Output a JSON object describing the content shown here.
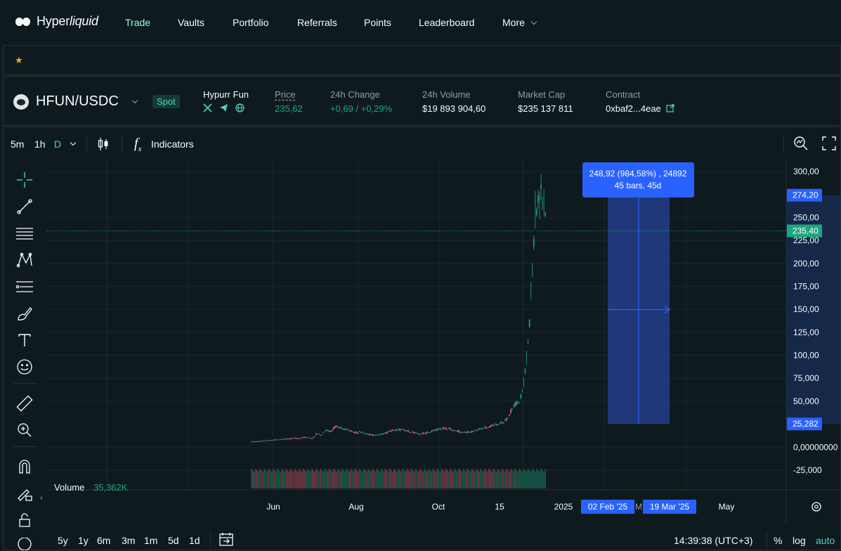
{
  "app": {
    "brand_prefix": "Hyper",
    "brand_suffix": "liquid"
  },
  "nav": {
    "items": [
      "Trade",
      "Vaults",
      "Portfolio",
      "Referrals",
      "Points",
      "Leaderboard",
      "More"
    ],
    "active": "Trade"
  },
  "favorites": {
    "star": "★"
  },
  "ticker": {
    "pair": "HFUN/USDC",
    "market_type": "Spot",
    "token_name": "Hypurr Fun",
    "price_label": "Price",
    "price": "235,62",
    "change_label": "24h Change",
    "change": "+0,69 / +0,29%",
    "volume_label": "24h Volume",
    "volume": "$19 893 904,60",
    "mcap_label": "Market Cap",
    "mcap": "$235 137 811",
    "contract_label": "Contract",
    "contract": "0xbaf2...4eae"
  },
  "toolbar": {
    "intervals": [
      "5m",
      "1h",
      "D"
    ],
    "active_interval": "D",
    "fx": "f",
    "fx_sub": "x",
    "indicators": "Indicators"
  },
  "chart_data": {
    "type": "candlestick",
    "y_ticks": [
      "300,00",
      "250,00",
      "225,00",
      "200,00",
      "175,00",
      "150,00",
      "125,00",
      "100,00",
      "75,000",
      "50,000",
      "0,00000000",
      "-25,000"
    ],
    "x_ticks": [
      "Jun",
      "Aug",
      "Oct",
      "15",
      "2025",
      "May"
    ],
    "ylim": [
      -25,
      300
    ],
    "current_price_label": "235,40",
    "current_price": 235.4,
    "measure_high_label": "274,20",
    "measure_high": 274.2,
    "measure_low_label": "25,282",
    "measure_low": 25.282,
    "measure_tooltip_line1": "248,92 (984,58%) , 24892",
    "measure_tooltip_line2": "45 bars, 45d",
    "measure_start_date": "02 Feb '25",
    "measure_end_date": "19 Mar '25",
    "measure_mid_date_fragment": "M",
    "volume_label": "Volume",
    "volume_value": "35,362K",
    "up_color": "#1fa67d",
    "down_color": "#ed7088",
    "accent_blue": "#2962ff"
  },
  "bottom": {
    "ranges": [
      "5y",
      "1y",
      "6m",
      "3m",
      "1m",
      "5d",
      "1d"
    ],
    "clock": "14:39:38 (UTC+3)",
    "percent": "%",
    "log": "log",
    "auto": "auto"
  },
  "colors": {
    "accent": "#97fce4",
    "teal": "#50d2c1",
    "bg": "#0f1a1f",
    "border": "#273035"
  }
}
